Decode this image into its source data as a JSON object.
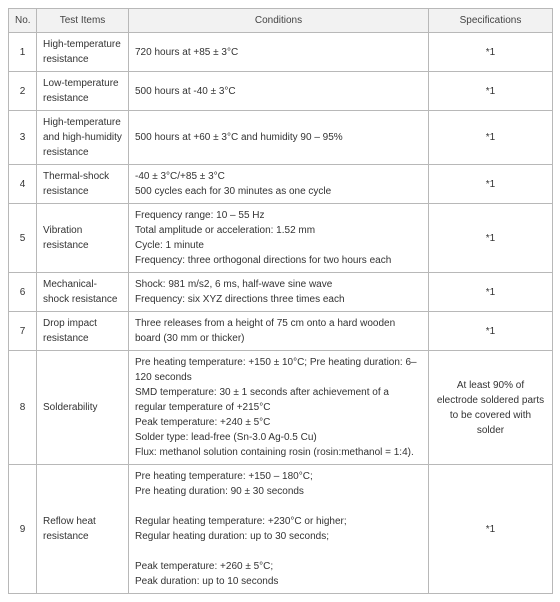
{
  "headers": {
    "no": "No.",
    "test_items": "Test Items",
    "conditions": "Conditions",
    "specifications": "Specifications"
  },
  "rows": [
    {
      "no": "1",
      "item": "High-temperature resistance",
      "cond": "720 hours at +85 ± 3°C",
      "spec": "*1"
    },
    {
      "no": "2",
      "item": "Low-temperature resistance",
      "cond": "500 hours at -40 ± 3°C",
      "spec": "*1"
    },
    {
      "no": "3",
      "item": "High-temperature and high-humidity resistance",
      "cond": "500 hours at +60 ± 3°C and humidity 90 – 95%",
      "spec": "*1"
    },
    {
      "no": "4",
      "item": "Thermal-shock resistance",
      "cond": "-40 ± 3°C/+85 ± 3°C\n500 cycles each for 30 minutes as one cycle",
      "spec": "*1"
    },
    {
      "no": "5",
      "item": "Vibration resistance",
      "cond": "Frequency range: 10 – 55 Hz\nTotal amplitude or acceleration: 1.52 mm\nCycle: 1 minute\nFrequency: three orthogonal directions for two hours each",
      "spec": "*1"
    },
    {
      "no": "6",
      "item": "Mechanical-shock resistance",
      "cond": "Shock: 981 m/s2, 6 ms, half-wave sine wave\nFrequency: six XYZ directions three times each",
      "spec": "*1"
    },
    {
      "no": "7",
      "item": "Drop impact resistance",
      "cond": "Three releases from a height of 75 cm onto a hard wooden board (30 mm or thicker)",
      "spec": "*1"
    },
    {
      "no": "8",
      "item": "Solderability",
      "cond": "Pre heating temperature: +150 ± 10°C; Pre heating duration: 6–120 seconds\nSMD temperature: 30 ± 1 seconds after achievement of a regular temperature of +215°C\nPeak temperature: +240 ± 5°C\nSolder type: lead-free (Sn-3.0 Ag-0.5 Cu)\nFlux: methanol solution containing rosin (rosin:methanol = 1:4).",
      "spec": "At least 90% of electrode soldered parts to be covered with solder"
    },
    {
      "no": "9",
      "item": "Reflow heat resistance",
      "cond": "Pre heating temperature: +150 – 180°C;\nPre heating duration: 90 ± 30 seconds\n\nRegular heating temperature: +230°C or higher;\nRegular heating duration: up to 30 seconds;\n\nPeak temperature: +260 ± 5°C;\nPeak duration: up to 10 seconds",
      "spec": "*1"
    }
  ]
}
